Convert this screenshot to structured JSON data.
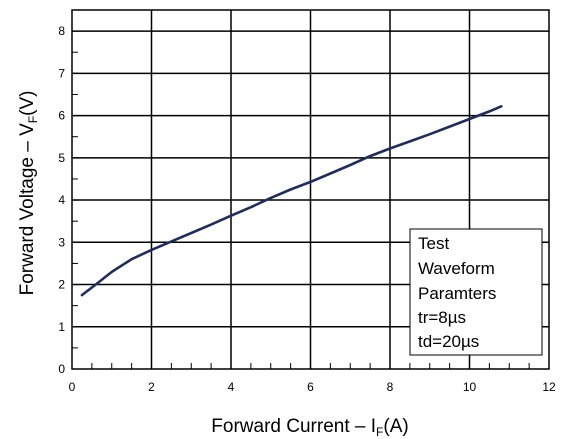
{
  "chart_data": {
    "type": "line",
    "title": "",
    "xlabel": {
      "main": "Forward Current – I",
      "sub": "F",
      "unit": "(A)"
    },
    "ylabel": {
      "main": "Forward Voltage – V",
      "sub": "F",
      "unit": "(V)"
    },
    "xlim": [
      0,
      12
    ],
    "ylim": [
      0,
      8.5
    ],
    "x_ticks": [
      0,
      2,
      4,
      6,
      8,
      10,
      12
    ],
    "x_tick_labels": [
      "0",
      "2",
      "4",
      "6",
      "8",
      "10",
      "12"
    ],
    "y_ticks": [
      0,
      1,
      2,
      3,
      4,
      5,
      6,
      7,
      8
    ],
    "y_tick_labels": [
      "0",
      "1",
      "2",
      "3",
      "4",
      "5",
      "6",
      "7",
      "8"
    ],
    "grid": true,
    "series": [
      {
        "color": "#1f2d5c",
        "x": [
          0.25,
          0.6,
          1.0,
          1.5,
          2.0,
          2.5,
          3.0,
          3.5,
          4.0,
          4.5,
          5.0,
          5.5,
          6.0,
          6.5,
          7.0,
          7.5,
          8.0,
          8.5,
          9.0,
          9.5,
          10.0,
          10.5,
          10.8
        ],
        "y": [
          1.75,
          2.0,
          2.3,
          2.6,
          2.82,
          3.02,
          3.22,
          3.42,
          3.63,
          3.83,
          4.05,
          4.25,
          4.43,
          4.63,
          4.83,
          5.04,
          5.22,
          5.39,
          5.56,
          5.74,
          5.92,
          6.1,
          6.22
        ]
      }
    ],
    "annotation": {
      "lines": [
        "Test",
        "Waveform",
        "Paramters",
        "tr=8µs",
        "td=20µs"
      ]
    }
  }
}
